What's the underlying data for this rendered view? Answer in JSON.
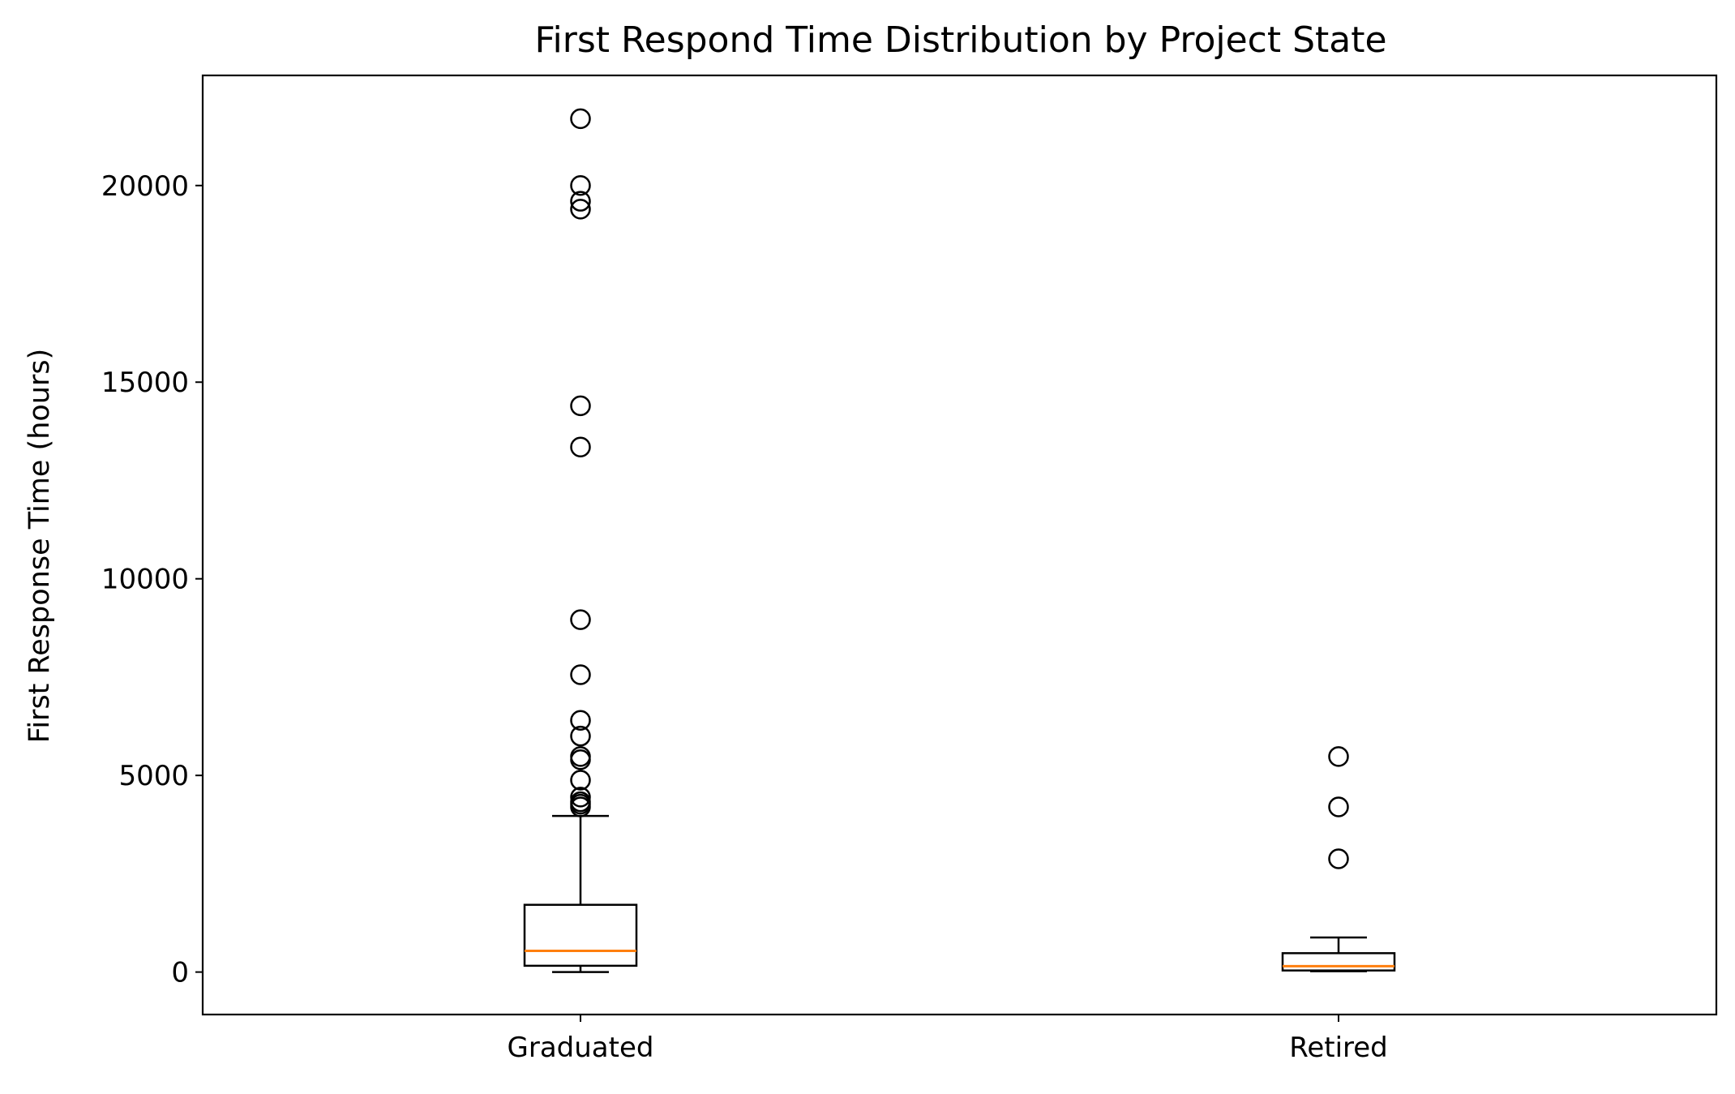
{
  "chart_data": {
    "type": "box",
    "title": "First Respond Time Distribution by Project State",
    "xlabel": "",
    "ylabel": "First Response Time (hours)",
    "ylim": [
      -1080,
      22800
    ],
    "yticks": [
      0,
      5000,
      10000,
      15000,
      20000
    ],
    "grid": false,
    "categories": [
      "Graduated",
      "Retired"
    ],
    "boxes": [
      {
        "category": "Graduated",
        "whisker_low": 0,
        "q1": 160,
        "median": 540,
        "q3": 1710,
        "whisker_high": 3970,
        "outliers": [
          21700,
          20000,
          19600,
          19400,
          14400,
          13350,
          8960,
          7560,
          6400,
          6000,
          5480,
          5400,
          4880,
          4450,
          4330,
          4270,
          4200
        ]
      },
      {
        "category": "Retired",
        "whisker_low": 20,
        "q1": 40,
        "median": 150,
        "q3": 480,
        "whisker_high": 880,
        "outliers": [
          5480,
          4200,
          2880
        ]
      }
    ],
    "colors": {
      "box": "#000000",
      "median": "#ff7f0e",
      "outlier": "#000000"
    }
  }
}
